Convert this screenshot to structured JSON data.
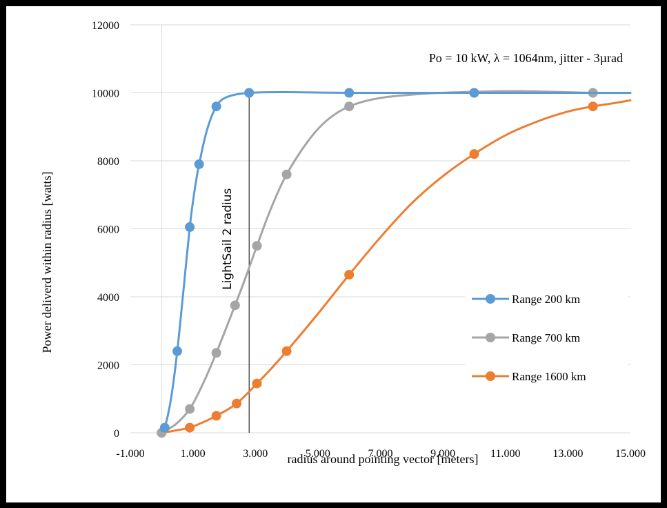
{
  "chart_data": {
    "type": "scatter",
    "subtype": "smooth-line-with-markers",
    "annotation": "Po = 10 kW,  λ = 1064nm, jitter - 3µrad",
    "xlabel": "radius around pointing vector [meters]",
    "ylabel": "Power deliverd within radius [watts]",
    "xlim": [
      -1,
      15
    ],
    "ylim": [
      0,
      12000
    ],
    "x_ticks": [
      -1,
      1,
      3,
      5,
      7,
      9,
      11,
      13,
      15
    ],
    "x_tick_labels": [
      "-1.000",
      "1.000",
      "3.000",
      "5.000",
      "7.000",
      "9.000",
      "11.000",
      "13.000",
      "15.000"
    ],
    "y_ticks": [
      0,
      2000,
      4000,
      6000,
      8000,
      10000,
      12000
    ],
    "y_tick_labels": [
      "0",
      "2000",
      "4000",
      "6000",
      "8000",
      "10000",
      "12000"
    ],
    "grid": "horizontal",
    "legend_position": "right-middle",
    "reference_line": {
      "x": 2.8,
      "label": "LightSail 2 radius"
    },
    "series": [
      {
        "name": "Range  200 km",
        "color": "#5B9BD5",
        "markers": [
          [
            0.1,
            150
          ],
          [
            0.5,
            2400
          ],
          [
            0.9,
            6050
          ],
          [
            1.2,
            7900
          ],
          [
            1.75,
            9600
          ],
          [
            2.8,
            10000
          ],
          [
            6.0,
            10000
          ],
          [
            10.0,
            10000
          ]
        ],
        "curve": [
          [
            0.0,
            50
          ],
          [
            0.1,
            150
          ],
          [
            0.3,
            1000
          ],
          [
            0.5,
            2400
          ],
          [
            0.7,
            4200
          ],
          [
            0.9,
            6050
          ],
          [
            1.05,
            7100
          ],
          [
            1.2,
            7900
          ],
          [
            1.45,
            8900
          ],
          [
            1.75,
            9600
          ],
          [
            2.1,
            9880
          ],
          [
            2.8,
            10000
          ],
          [
            4.0,
            10020
          ],
          [
            6.0,
            10000
          ],
          [
            10.0,
            10000
          ],
          [
            15.0,
            10000
          ]
        ]
      },
      {
        "name": "Range 700 km",
        "color": "#A5A5A5",
        "markers": [
          [
            0.0,
            0
          ],
          [
            0.9,
            700
          ],
          [
            1.75,
            2350
          ],
          [
            2.35,
            3750
          ],
          [
            3.05,
            5500
          ],
          [
            4.0,
            7600
          ],
          [
            6.0,
            9600
          ],
          [
            10.0,
            10000
          ],
          [
            13.8,
            10000
          ]
        ],
        "curve": [
          [
            0.0,
            0
          ],
          [
            0.45,
            250
          ],
          [
            0.9,
            700
          ],
          [
            1.3,
            1400
          ],
          [
            1.75,
            2350
          ],
          [
            2.35,
            3750
          ],
          [
            2.7,
            4600
          ],
          [
            3.05,
            5500
          ],
          [
            3.5,
            6600
          ],
          [
            4.0,
            7600
          ],
          [
            4.7,
            8600
          ],
          [
            5.3,
            9200
          ],
          [
            6.0,
            9600
          ],
          [
            7.0,
            9850
          ],
          [
            8.5,
            9980
          ],
          [
            10.0,
            10030
          ],
          [
            11.5,
            10050
          ],
          [
            13.8,
            10000
          ],
          [
            15.0,
            10000
          ]
        ]
      },
      {
        "name": "Range 1600 km",
        "color": "#ED7D31",
        "markers": [
          [
            0.0,
            0
          ],
          [
            0.9,
            150
          ],
          [
            1.75,
            500
          ],
          [
            2.4,
            860
          ],
          [
            3.05,
            1450
          ],
          [
            4.0,
            2400
          ],
          [
            6.0,
            4650
          ],
          [
            10.0,
            8200
          ],
          [
            13.8,
            9600
          ]
        ],
        "curve": [
          [
            0.0,
            0
          ],
          [
            0.4,
            60
          ],
          [
            0.9,
            150
          ],
          [
            1.3,
            300
          ],
          [
            1.75,
            500
          ],
          [
            2.4,
            860
          ],
          [
            3.05,
            1450
          ],
          [
            3.5,
            1880
          ],
          [
            4.0,
            2400
          ],
          [
            5.0,
            3500
          ],
          [
            6.0,
            4650
          ],
          [
            7.0,
            5750
          ],
          [
            8.0,
            6750
          ],
          [
            9.0,
            7550
          ],
          [
            10.0,
            8200
          ],
          [
            11.0,
            8750
          ],
          [
            12.0,
            9150
          ],
          [
            13.0,
            9450
          ],
          [
            13.8,
            9600
          ],
          [
            14.5,
            9700
          ],
          [
            15.0,
            9780
          ]
        ]
      }
    ]
  }
}
